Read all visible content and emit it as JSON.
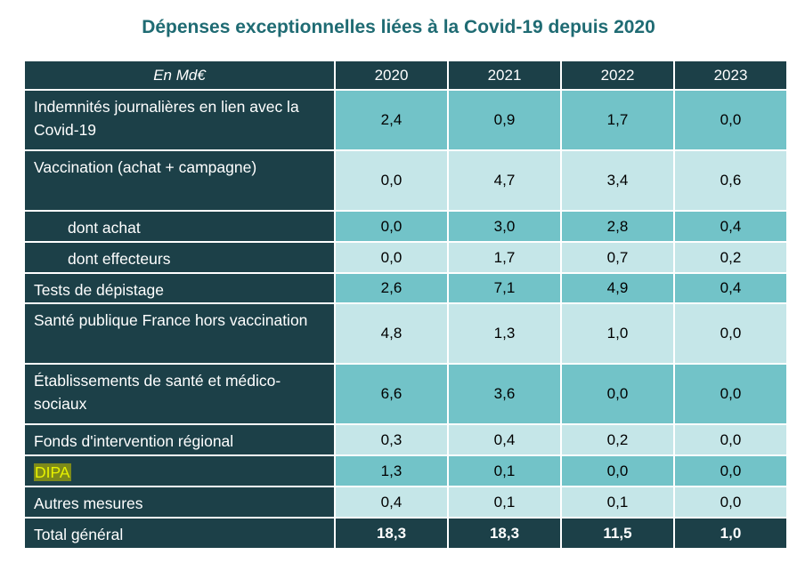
{
  "title": "Dépenses exceptionnelles liées à la Covid-19 depuis 2020",
  "table": {
    "header": {
      "label": "En Md€",
      "years": [
        "2020",
        "2021",
        "2022",
        "2023"
      ]
    },
    "rows": [
      {
        "label": "Indemnités journalières en lien avec la Covid-19",
        "values": [
          "2,4",
          "0,9",
          "1,7",
          "0,0"
        ]
      },
      {
        "label": "Vaccination (achat + campagne)",
        "values": [
          "0,0",
          "4,7",
          "3,4",
          "0,6"
        ]
      },
      {
        "label": "dont achat",
        "values": [
          "0,0",
          "3,0",
          "2,8",
          "0,4"
        ]
      },
      {
        "label": "dont effecteurs",
        "values": [
          "0,0",
          "1,7",
          "0,7",
          "0,2"
        ]
      },
      {
        "label": "Tests de dépistage",
        "values": [
          "2,6",
          "7,1",
          "4,9",
          "0,4"
        ]
      },
      {
        "label": "Santé publique France hors vaccination",
        "values": [
          "4,8",
          "1,3",
          "1,0",
          "0,0"
        ]
      },
      {
        "label": "Établissements de santé et médico-sociaux",
        "values": [
          "6,6",
          "3,6",
          "0,0",
          "0,0"
        ]
      },
      {
        "label": "Fonds d'intervention régional",
        "values": [
          "0,3",
          "0,4",
          "0,2",
          "0,0"
        ]
      },
      {
        "label": "DIPA",
        "values": [
          "1,3",
          "0,1",
          "0,0",
          "0,0"
        ]
      },
      {
        "label": "Autres mesures",
        "values": [
          "0,4",
          "0,1",
          "0,1",
          "0,0"
        ]
      },
      {
        "label": "Total général",
        "values": [
          "18,3",
          "18,3",
          "11,5",
          "1,0"
        ]
      }
    ]
  }
}
